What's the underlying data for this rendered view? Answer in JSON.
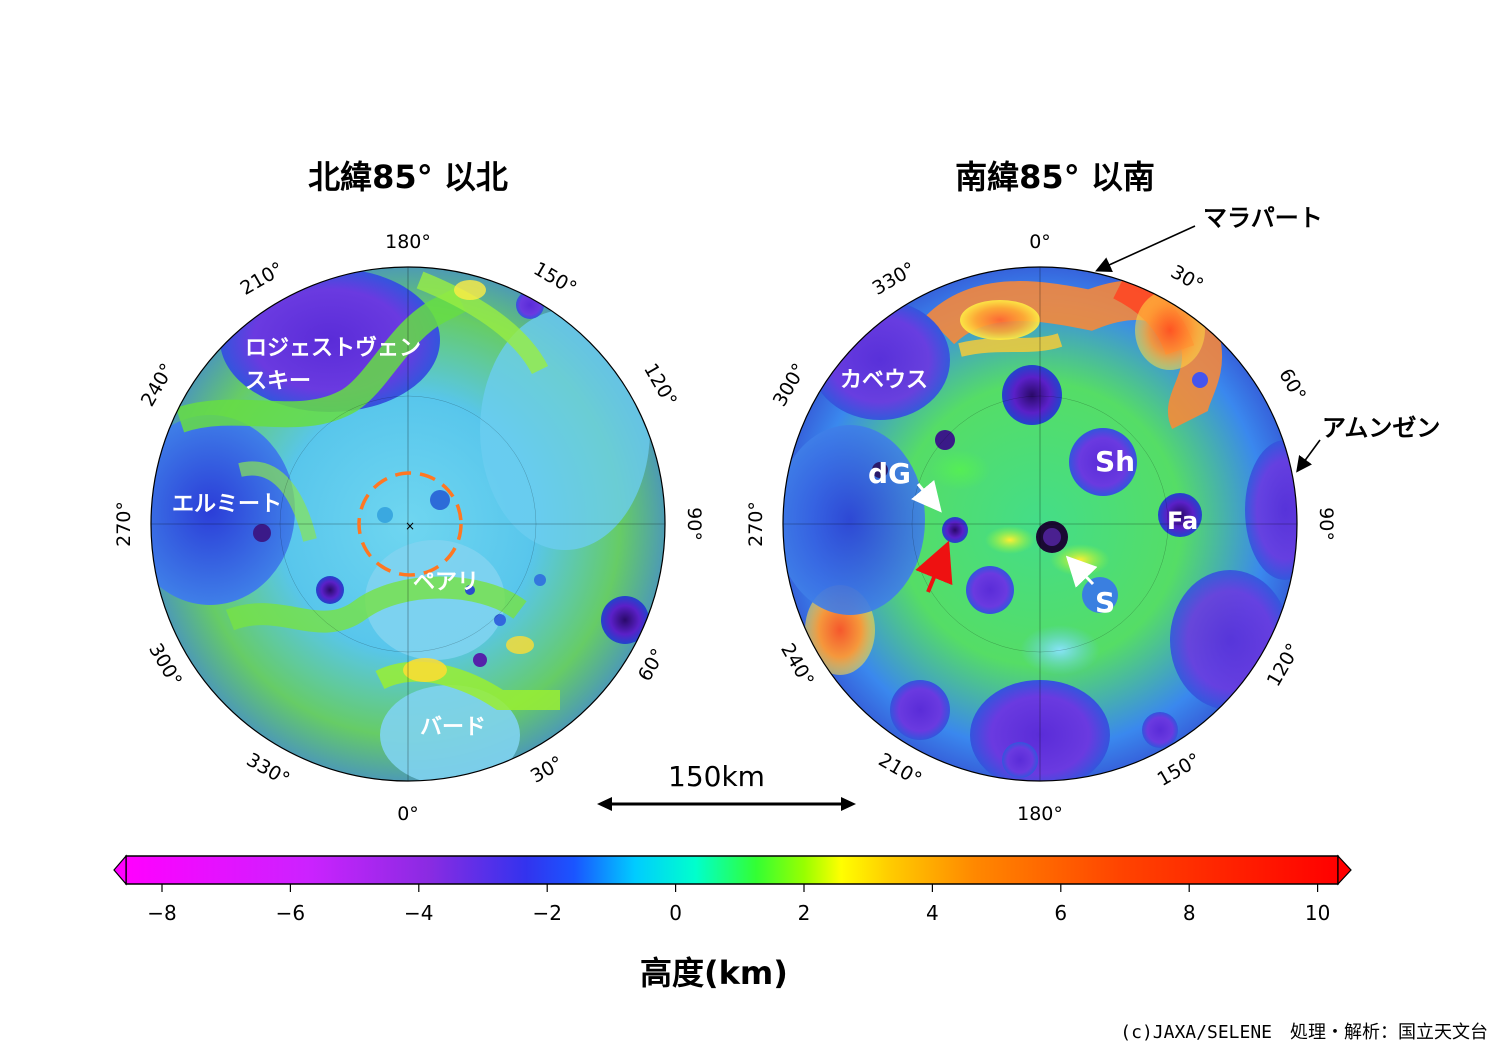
{
  "titles": {
    "north": "北緯85° 以北",
    "south": "南緯85° 以南"
  },
  "north_map": {
    "longitude_labels": [
      "180°",
      "210°",
      "150°",
      "240°",
      "120°",
      "270°",
      "90°",
      "300°",
      "60°",
      "330°",
      "30°",
      "0°"
    ],
    "features": [
      {
        "name": "Rozhdestvensky",
        "text": "ロジェストヴェン\nスキー"
      },
      {
        "name": "Hermite",
        "text": "エルミート"
      },
      {
        "name": "Peary",
        "text": "ペアリ"
      },
      {
        "name": "Byrd",
        "text": "バード"
      }
    ]
  },
  "south_map": {
    "longitude_labels": [
      "0°",
      "330°",
      "30°",
      "300°",
      "60°",
      "270°",
      "90°",
      "240°",
      "120°",
      "210°",
      "150°",
      "180°"
    ],
    "features": [
      {
        "name": "Cabeus",
        "text": "カベウス"
      },
      {
        "name": "de Gerlache",
        "text": "dG"
      },
      {
        "name": "Shackleton",
        "text": "S"
      },
      {
        "name": "Shoemaker",
        "text": "Sh"
      },
      {
        "name": "Faustini",
        "text": "Fa"
      }
    ],
    "callouts": [
      {
        "name": "Malapert",
        "text": "マラパート"
      },
      {
        "name": "Amundsen",
        "text": "アムンゼン"
      }
    ]
  },
  "scale_bar": {
    "label": "150km"
  },
  "colorbar": {
    "title": "高度(km)",
    "ticks": [
      "−8",
      "−6",
      "−4",
      "−2",
      "0",
      "2",
      "4",
      "6",
      "8",
      "10"
    ],
    "colors": [
      "#ff00ff",
      "#cc33ff",
      "#8a2be2",
      "#3333ff",
      "#1a66ff",
      "#00ccff",
      "#00ffcc",
      "#33ff33",
      "#99ff00",
      "#ffff00",
      "#ffcc00",
      "#ff8800",
      "#ff5500",
      "#ff2200",
      "#ff0000"
    ]
  },
  "credit": "(c)JAXA/SELENE　処理・解析：国立天文台"
}
